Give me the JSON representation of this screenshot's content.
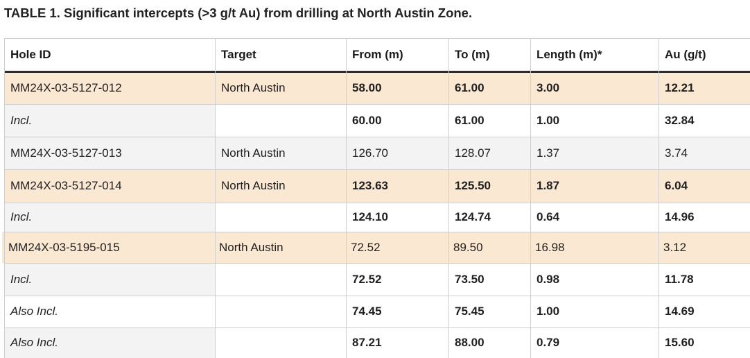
{
  "title": "TABLE 1. Significant intercepts (>3 g/t Au) from drilling at North Austin Zone.",
  "columns": [
    "Hole ID",
    "Target",
    "From (m)",
    "To (m)",
    "Length (m)*",
    "Au (g/t)"
  ],
  "rows": [
    {
      "hole_id": "MM24X-03-5127-012",
      "target": "North Austin",
      "from": "58.00",
      "to": "61.00",
      "length": "3.00",
      "au": "12.21"
    },
    {
      "hole_id": "Incl.",
      "target": "",
      "from": "60.00",
      "to": "61.00",
      "length": "1.00",
      "au": "32.84"
    },
    {
      "hole_id": "MM24X-03-5127-013",
      "target": "North Austin",
      "from": "126.70",
      "to": "128.07",
      "length": "1.37",
      "au": "3.74"
    },
    {
      "hole_id": "MM24X-03-5127-014",
      "target": "North Austin",
      "from": "123.63",
      "to": "125.50",
      "length": "1.87",
      "au": "6.04"
    },
    {
      "hole_id": "Incl.",
      "target": "",
      "from": "124.10",
      "to": "124.74",
      "length": "0.64",
      "au": "14.96"
    },
    {
      "hole_id": "MM24X-03-5195-015",
      "target": "North Austin",
      "from": "72.52",
      "to": "89.50",
      "length": "16.98",
      "au": "3.12"
    },
    {
      "hole_id": "Incl.",
      "target": "",
      "from": "72.52",
      "to": "73.50",
      "length": "0.98",
      "au": "11.78"
    },
    {
      "hole_id": "Also Incl.",
      "target": "",
      "from": "74.45",
      "to": "75.45",
      "length": "1.00",
      "au": "14.69"
    },
    {
      "hole_id": "Also Incl.",
      "target": "",
      "from": "87.21",
      "to": "88.00",
      "length": "0.79",
      "au": "15.60"
    }
  ]
}
